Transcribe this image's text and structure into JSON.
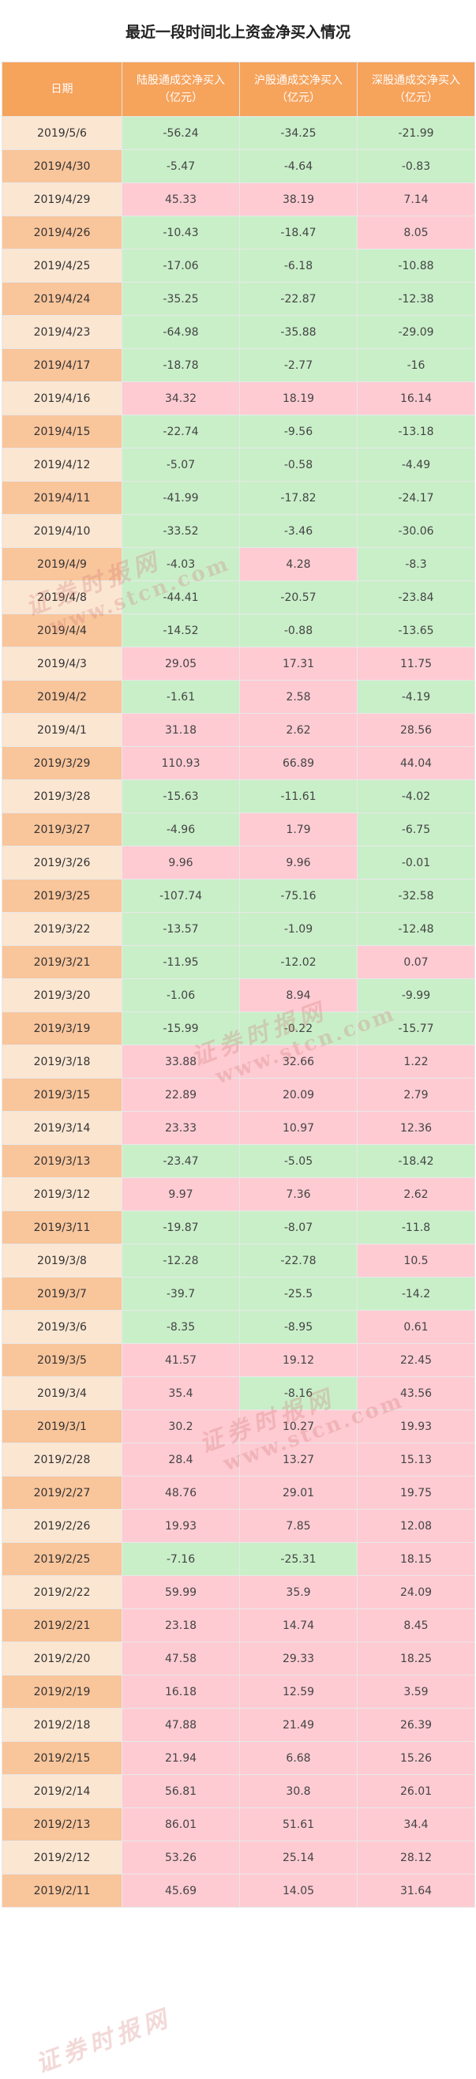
{
  "title": "最近一段时间北上资金净买入情况",
  "headers": {
    "date": "日期",
    "lugu": [
      "陆股通成交净买入",
      "（亿元）"
    ],
    "hugu": [
      "沪股通成交净买入",
      "（亿元）"
    ],
    "shengu": [
      "深股通成交净买入",
      "（亿元）"
    ]
  },
  "watermark": {
    "brand": "证券时报网",
    "site": "www.stcn.com"
  },
  "colors": {
    "header": "#f6a35c",
    "positive": "#fecbd3",
    "negative": "#c9efc9",
    "date_light": "#fbe6d2",
    "date_dark": "#f9c59b"
  },
  "rows": [
    [
      "2019/5/6",
      "-56.24",
      "-34.25",
      "-21.99"
    ],
    [
      "2019/4/30",
      "-5.47",
      "-4.64",
      "-0.83"
    ],
    [
      "2019/4/29",
      "45.33",
      "38.19",
      "7.14"
    ],
    [
      "2019/4/26",
      "-10.43",
      "-18.47",
      "8.05"
    ],
    [
      "2019/4/25",
      "-17.06",
      "-6.18",
      "-10.88"
    ],
    [
      "2019/4/24",
      "-35.25",
      "-22.87",
      "-12.38"
    ],
    [
      "2019/4/23",
      "-64.98",
      "-35.88",
      "-29.09"
    ],
    [
      "2019/4/17",
      "-18.78",
      "-2.77",
      "-16"
    ],
    [
      "2019/4/16",
      "34.32",
      "18.19",
      "16.14"
    ],
    [
      "2019/4/15",
      "-22.74",
      "-9.56",
      "-13.18"
    ],
    [
      "2019/4/12",
      "-5.07",
      "-0.58",
      "-4.49"
    ],
    [
      "2019/4/11",
      "-41.99",
      "-17.82",
      "-24.17"
    ],
    [
      "2019/4/10",
      "-33.52",
      "-3.46",
      "-30.06"
    ],
    [
      "2019/4/9",
      "-4.03",
      "4.28",
      "-8.3"
    ],
    [
      "2019/4/8",
      "-44.41",
      "-20.57",
      "-23.84"
    ],
    [
      "2019/4/4",
      "-14.52",
      "-0.88",
      "-13.65"
    ],
    [
      "2019/4/3",
      "29.05",
      "17.31",
      "11.75"
    ],
    [
      "2019/4/2",
      "-1.61",
      "2.58",
      "-4.19"
    ],
    [
      "2019/4/1",
      "31.18",
      "2.62",
      "28.56"
    ],
    [
      "2019/3/29",
      "110.93",
      "66.89",
      "44.04"
    ],
    [
      "2019/3/28",
      "-15.63",
      "-11.61",
      "-4.02"
    ],
    [
      "2019/3/27",
      "-4.96",
      "1.79",
      "-6.75"
    ],
    [
      "2019/3/26",
      "9.96",
      "9.96",
      "-0.01"
    ],
    [
      "2019/3/25",
      "-107.74",
      "-75.16",
      "-32.58"
    ],
    [
      "2019/3/22",
      "-13.57",
      "-1.09",
      "-12.48"
    ],
    [
      "2019/3/21",
      "-11.95",
      "-12.02",
      "0.07"
    ],
    [
      "2019/3/20",
      "-1.06",
      "8.94",
      "-9.99"
    ],
    [
      "2019/3/19",
      "-15.99",
      "-0.22",
      "-15.77"
    ],
    [
      "2019/3/18",
      "33.88",
      "32.66",
      "1.22"
    ],
    [
      "2019/3/15",
      "22.89",
      "20.09",
      "2.79"
    ],
    [
      "2019/3/14",
      "23.33",
      "10.97",
      "12.36"
    ],
    [
      "2019/3/13",
      "-23.47",
      "-5.05",
      "-18.42"
    ],
    [
      "2019/3/12",
      "9.97",
      "7.36",
      "2.62"
    ],
    [
      "2019/3/11",
      "-19.87",
      "-8.07",
      "-11.8"
    ],
    [
      "2019/3/8",
      "-12.28",
      "-22.78",
      "10.5"
    ],
    [
      "2019/3/7",
      "-39.7",
      "-25.5",
      "-14.2"
    ],
    [
      "2019/3/6",
      "-8.35",
      "-8.95",
      "0.61"
    ],
    [
      "2019/3/5",
      "41.57",
      "19.12",
      "22.45"
    ],
    [
      "2019/3/4",
      "35.4",
      "-8.16",
      "43.56"
    ],
    [
      "2019/3/1",
      "30.2",
      "10.27",
      "19.93"
    ],
    [
      "2019/2/28",
      "28.4",
      "13.27",
      "15.13"
    ],
    [
      "2019/2/27",
      "48.76",
      "29.01",
      "19.75"
    ],
    [
      "2019/2/26",
      "19.93",
      "7.85",
      "12.08"
    ],
    [
      "2019/2/25",
      "-7.16",
      "-25.31",
      "18.15"
    ],
    [
      "2019/2/22",
      "59.99",
      "35.9",
      "24.09"
    ],
    [
      "2019/2/21",
      "23.18",
      "14.74",
      "8.45"
    ],
    [
      "2019/2/20",
      "47.58",
      "29.33",
      "18.25"
    ],
    [
      "2019/2/19",
      "16.18",
      "12.59",
      "3.59"
    ],
    [
      "2019/2/18",
      "47.88",
      "21.49",
      "26.39"
    ],
    [
      "2019/2/15",
      "21.94",
      "6.68",
      "15.26"
    ],
    [
      "2019/2/14",
      "56.81",
      "30.8",
      "26.01"
    ],
    [
      "2019/2/13",
      "86.01",
      "51.61",
      "34.4"
    ],
    [
      "2019/2/12",
      "53.26",
      "25.14",
      "28.12"
    ],
    [
      "2019/2/11",
      "45.69",
      "14.05",
      "31.64"
    ]
  ]
}
